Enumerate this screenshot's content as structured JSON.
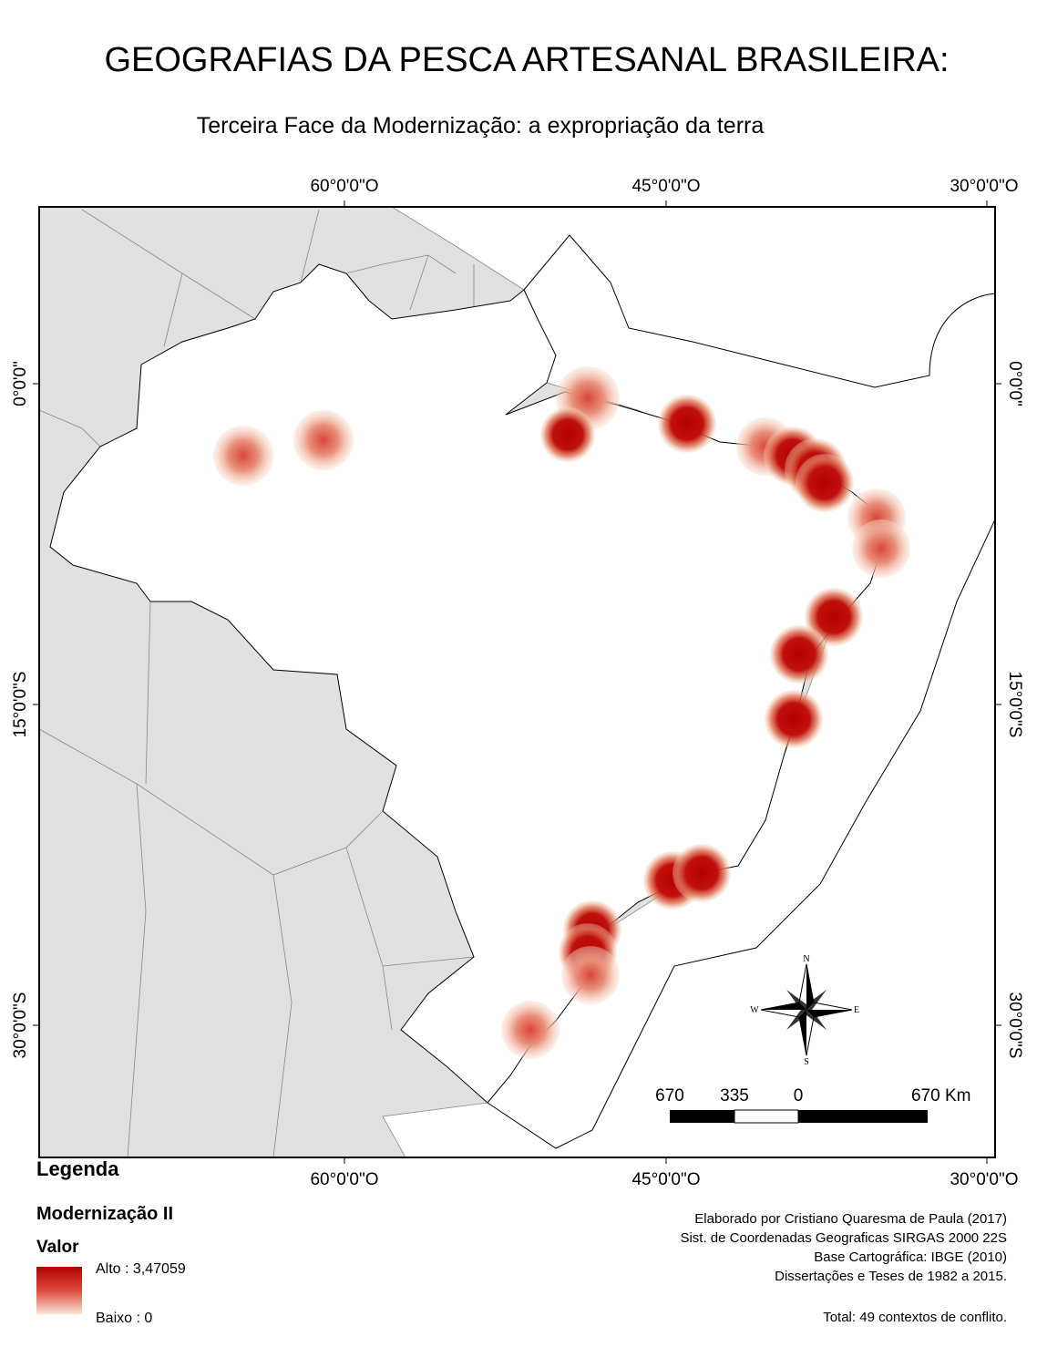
{
  "header": {
    "title": "GEOGRAFIAS DA PESCA ARTESANAL BRASILEIRA:",
    "subtitle": "Terceira Face da Modernização: a expropriação da terra"
  },
  "graticule": {
    "top": [
      "60°0'0\"O",
      "45°0'0\"O",
      "30°0'0\"O"
    ],
    "bottom": [
      "60°0'0\"O",
      "45°0'0\"O",
      "30°0'0\"O"
    ],
    "left": [
      "0°0'0\"",
      "15°0'0\"S",
      "30°0'0\"S"
    ],
    "right": [
      "0°0'0\"",
      "15°0'0\"S",
      "30°0'0\"S"
    ]
  },
  "compass": {
    "n": "N",
    "s": "S",
    "e": "E",
    "w": "W"
  },
  "scale_bar": {
    "labels": [
      "670",
      "335",
      "0",
      "670 Km"
    ]
  },
  "legend": {
    "title": "Legenda",
    "layer": "Modernização II",
    "field": "Valor",
    "high": "Alto : 3,47059",
    "low": "Baixo : 0"
  },
  "credits": {
    "lines": [
      "Elaborado por Cristiano Quaresma de Paula (2017)",
      "Sist. de Coordenadas Geograficas SIRGAS 2000 22S",
      "Base Cartográfica: IBGE (2010)",
      "Dissertações e Teses de 1982 a 2015."
    ],
    "total": "Total: 49 contextos de conflito."
  }
}
